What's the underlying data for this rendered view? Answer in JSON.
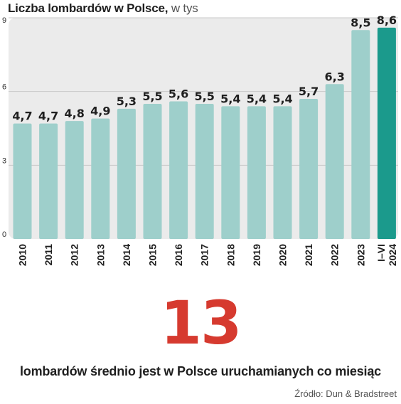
{
  "chart_title": "Liczba lombardów w Polsce,",
  "chart_unit": "w tys",
  "highlight_number": "13",
  "highlight_caption": "lombardów średnio jest w Polsce uruchamianych co miesiąc",
  "source": "Źródło: Dun & Bradstreet",
  "colors": {
    "bar": "#9ecfcb",
    "bar_highlight": "#1b9a8c",
    "plot_background": "#ebebeb",
    "gridline": "#c9c9c9",
    "accent_number": "#d63a2f",
    "text": "#1f1f1f"
  },
  "chart_data": {
    "type": "bar",
    "title": "Liczba lombardów w Polsce, w tys",
    "categories": [
      "2010",
      "2011",
      "2012",
      "2013",
      "2014",
      "2015",
      "2016",
      "2017",
      "2018",
      "2019",
      "2020",
      "2021",
      "2022",
      "2023",
      "I–VI 2024"
    ],
    "category_lines": [
      [
        "2010"
      ],
      [
        "2011"
      ],
      [
        "2012"
      ],
      [
        "2013"
      ],
      [
        "2014"
      ],
      [
        "2015"
      ],
      [
        "2016"
      ],
      [
        "2017"
      ],
      [
        "2018"
      ],
      [
        "2019"
      ],
      [
        "2020"
      ],
      [
        "2021"
      ],
      [
        "2022"
      ],
      [
        "2023"
      ],
      [
        "I–VI",
        "2024"
      ]
    ],
    "values": [
      4.7,
      4.7,
      4.8,
      4.9,
      5.3,
      5.5,
      5.6,
      5.5,
      5.4,
      5.4,
      5.4,
      5.7,
      6.3,
      8.5,
      8.6
    ],
    "value_labels": [
      "4,7",
      "4,7",
      "4,8",
      "4,9",
      "5,3",
      "5,5",
      "5,6",
      "5,5",
      "5,4",
      "5,4",
      "5,4",
      "5,7",
      "6,3",
      "8,5",
      "8,6"
    ],
    "highlight_index": 14,
    "ylim": [
      0,
      9
    ],
    "yticks": [
      0,
      3,
      6,
      9
    ],
    "ytick_labels": [
      "0",
      "3",
      "6",
      "9"
    ],
    "xlabel": "",
    "ylabel": "",
    "grid": true,
    "tick_label_orientation": "vertical"
  }
}
